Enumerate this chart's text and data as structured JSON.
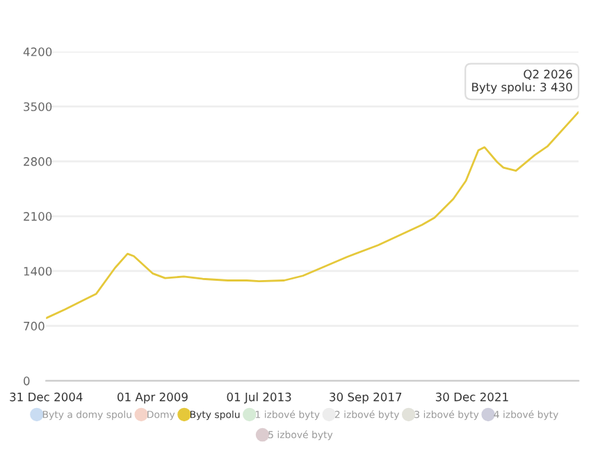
{
  "chart_data": {
    "type": "line",
    "series": [
      {
        "name": "Byty a domy spolu",
        "color": "#c9dcf2"
      },
      {
        "name": "Domy",
        "color": "#f5d3c8"
      },
      {
        "name": "Byty spolu",
        "color": "#e5c83a",
        "x": [
          "2005-01-01",
          "2005-10-01",
          "2006-07-01",
          "2007-01-01",
          "2007-10-01",
          "2008-04-01",
          "2008-07-01",
          "2009-04-01",
          "2009-10-01",
          "2010-07-01",
          "2011-04-01",
          "2012-04-01",
          "2013-01-01",
          "2013-07-01",
          "2014-07-01",
          "2015-04-01",
          "2017-01-01",
          "2018-04-01",
          "2020-01-01",
          "2020-07-01",
          "2021-04-01",
          "2021-10-01",
          "2022-04-01",
          "2022-07-01",
          "2023-01-01",
          "2023-04-01",
          "2023-10-01",
          "2024-07-01",
          "2025-01-01",
          "2026-04-01"
        ],
        "values": [
          800,
          910,
          1030,
          1110,
          1440,
          1620,
          1590,
          1370,
          1310,
          1330,
          1300,
          1280,
          1280,
          1270,
          1280,
          1340,
          1580,
          1730,
          1990,
          2080,
          2320,
          2550,
          2940,
          2980,
          2790,
          2720,
          2680,
          2880,
          2990,
          3430
        ]
      },
      {
        "name": "1 izbové byty",
        "color": "#d6ebd6"
      },
      {
        "name": "2 izbové byty",
        "color": "#ededed"
      },
      {
        "name": "3 izbové byty",
        "color": "#e2e2da"
      },
      {
        "name": "4 izbové byty",
        "color": "#cdcddc"
      },
      {
        "name": "5 izbové byty",
        "color": "#dccccf"
      }
    ],
    "xlim": [
      "2004-12-31",
      "2026-04-01"
    ],
    "xticks": [
      {
        "value": "2004-12-31",
        "label": "31 Dec 2004"
      },
      {
        "value": "2009-04-01",
        "label": "01 Apr 2009"
      },
      {
        "value": "2013-07-01",
        "label": "01 Jul 2013"
      },
      {
        "value": "2017-09-30",
        "label": "30 Sep 2017"
      },
      {
        "value": "2021-12-30",
        "label": "30 Dec 2021"
      }
    ],
    "ylim": [
      0,
      4200
    ],
    "yticks": [
      0,
      700,
      1400,
      2100,
      2800,
      3500,
      4200
    ],
    "grid": "y",
    "legend": "bottom",
    "marker": "none",
    "line_style": "solid",
    "annotations": [
      {
        "text": "Q2 2026\nByty spolu: 3 430",
        "x": "2026-04-01",
        "y": 3430
      }
    ]
  }
}
